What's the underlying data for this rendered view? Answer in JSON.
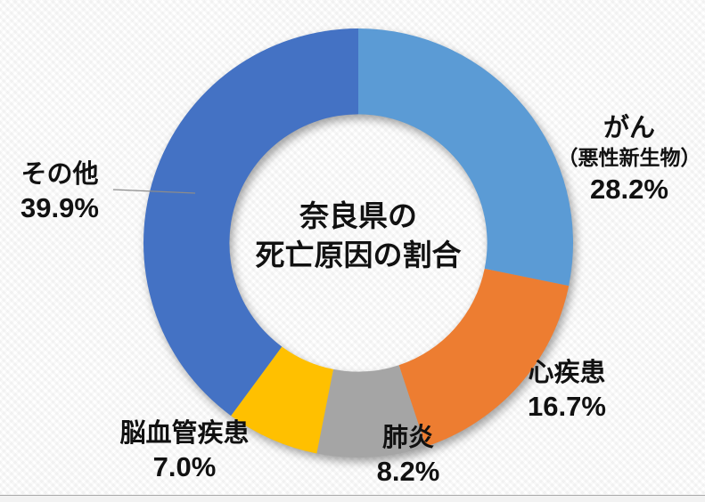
{
  "chart_data": {
    "type": "pie",
    "subtype": "donut",
    "title": "奈良県の死亡原因の割合",
    "categories": [
      "がん（悪性新生物）",
      "心疾患",
      "肺炎",
      "脳血管疾患",
      "その他"
    ],
    "values": [
      28.2,
      16.7,
      8.2,
      7.0,
      39.9
    ],
    "unit": "%",
    "colors": [
      "#5B9BD5",
      "#ED7D31",
      "#A5A5A5",
      "#FFC000",
      "#4472C4"
    ],
    "start_angle_deg": 0,
    "direction": "clockwise",
    "hole_ratio": 0.6,
    "legend_position": "none",
    "data_labels": "outside"
  },
  "center_title": {
    "line1": "奈良県の",
    "line2": "死亡原因の割合"
  },
  "labels": {
    "cancer": {
      "name": "がん",
      "sub": "（悪性新生物）",
      "value": "28.2%"
    },
    "heart": {
      "name": "心疾患",
      "value": "16.7%"
    },
    "pneumonia": {
      "name": "肺炎",
      "value": "8.2%"
    },
    "cerebrovascular": {
      "name": "脳血管疾患",
      "value": "7.0%"
    },
    "other": {
      "name": "その他",
      "value": "39.9%"
    }
  },
  "colors": {
    "text": "#111111",
    "leader_line": "#8c8c8c",
    "background": "#ffffff",
    "bottom_line": "#a9a9a9",
    "bottom_strip": "#f2f2f2"
  }
}
